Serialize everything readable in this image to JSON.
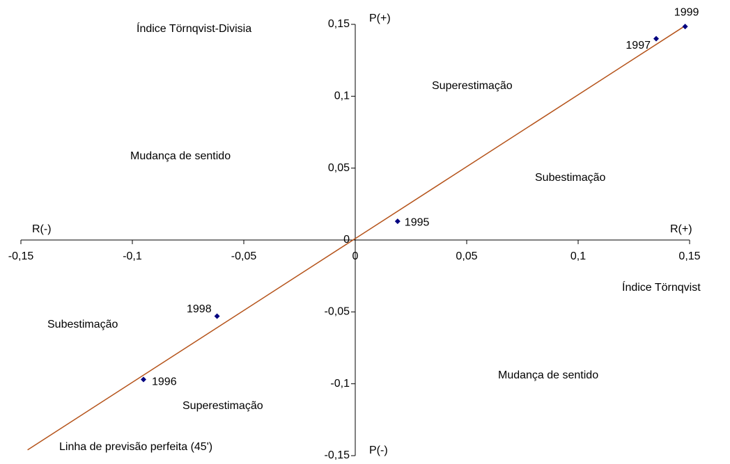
{
  "chart_data": {
    "type": "scatter",
    "x_label": "Índice Törnqvist",
    "y_label": "Índice Törnqvist-Divisia",
    "x": [
      0.019,
      -0.095,
      0.135,
      -0.062,
      0.148
    ],
    "values": [
      0.013,
      -0.097,
      0.14,
      -0.053,
      0.1485
    ],
    "labels": [
      "1995",
      "1996",
      "1997",
      "1998",
      "1999"
    ],
    "color": "#000080",
    "line": {
      "x": [
        -0.147,
        0.148
      ],
      "values": [
        -0.146,
        0.149
      ],
      "color": "#b5531a"
    },
    "xlim": [
      -0.15,
      0.15
    ],
    "ylim": [
      -0.15,
      0.15
    ],
    "xticks": [
      {
        "value": -0.15,
        "label": "-0,15"
      },
      {
        "value": -0.1,
        "label": "-0,1"
      },
      {
        "value": -0.05,
        "label": "-0,05"
      },
      0,
      {
        "value": 0.05,
        "label": "0,05"
      },
      {
        "value": 0.1,
        "label": "0,1"
      },
      {
        "value": 0.15,
        "label": "0,15"
      }
    ],
    "yticks": [
      {
        "value": -0.15,
        "label": "-0,15"
      },
      {
        "value": -0.1,
        "label": "-0,1"
      },
      {
        "value": -0.05,
        "label": "-0,05"
      },
      0,
      {
        "value": 0.05,
        "label": "0,05"
      },
      {
        "value": 0.1,
        "label": "0,1"
      },
      {
        "value": 0.15,
        "label": "0,15"
      }
    ],
    "annotations": [
      "P(+)",
      "P(-)",
      "R(-)",
      "R(+)",
      "Superestimação",
      "Mudança de sentido",
      "Subestimação",
      "Subestimação",
      "Superestimação",
      "Mudança de sentido",
      "Linha de previsão perfeita (45')"
    ]
  }
}
